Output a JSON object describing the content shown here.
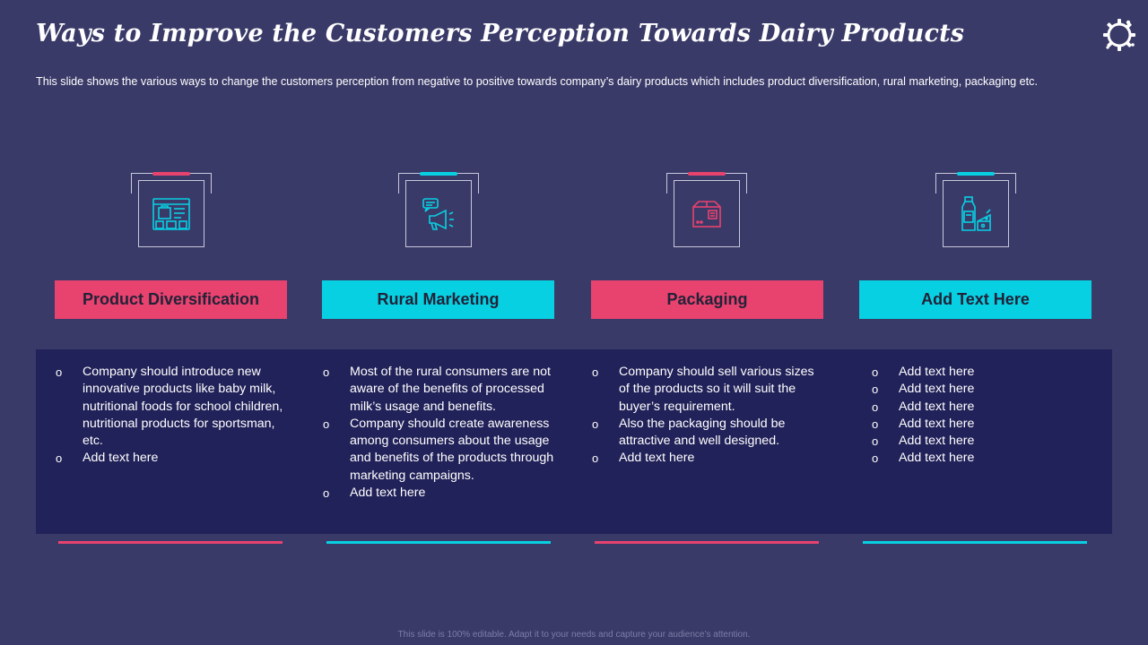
{
  "title": "Ways to Improve the Customers Perception Towards Dairy Products",
  "subtitle": "This slide shows the various  ways to change the customers perception from negative  to positive  towards  company’s dairy  products which includes product diversification,  rural  marketing, packaging etc.",
  "footer": "This slide is 100% editable. Adapt it to your needs and capture your audience’s attention.",
  "colors": {
    "background": "#3a3a69",
    "panel": "#22225a",
    "pink": "#e8426e",
    "cyan": "#07d0e2"
  },
  "columns": [
    {
      "icon": "online-store-icon",
      "heading": "Product Diversification",
      "accent": "pink",
      "bullet": "o",
      "items": [
        "Company should introduce new innovative products like baby milk, nutritional foods for school children, nutritional products for sportsman, etc.",
        "Add text here"
      ]
    },
    {
      "icon": "megaphone-icon",
      "heading": "Rural Marketing",
      "accent": "cyan",
      "bullet": "o",
      "items": [
        "Most of the rural consumers are not aware of the benefits of processed milk’s usage and benefits.",
        "Company should create awareness among consumers about the usage and benefits of the products through marketing campaigns.",
        "Add text here"
      ]
    },
    {
      "icon": "package-box-icon",
      "heading": "Packaging",
      "accent": "pink",
      "bullet": "o",
      "items": [
        "Company should sell various sizes of the products so it will suit the buyer’s requirement.",
        "Also the packaging should be attractive and well designed.",
        "Add text here"
      ]
    },
    {
      "icon": "milk-cheese-icon",
      "heading": "Add Text Here",
      "accent": "cyan",
      "bullet": "o",
      "items": [
        "Add text here",
        "Add text here",
        "Add text here",
        "Add text here",
        "Add text here",
        "Add text here"
      ]
    }
  ]
}
